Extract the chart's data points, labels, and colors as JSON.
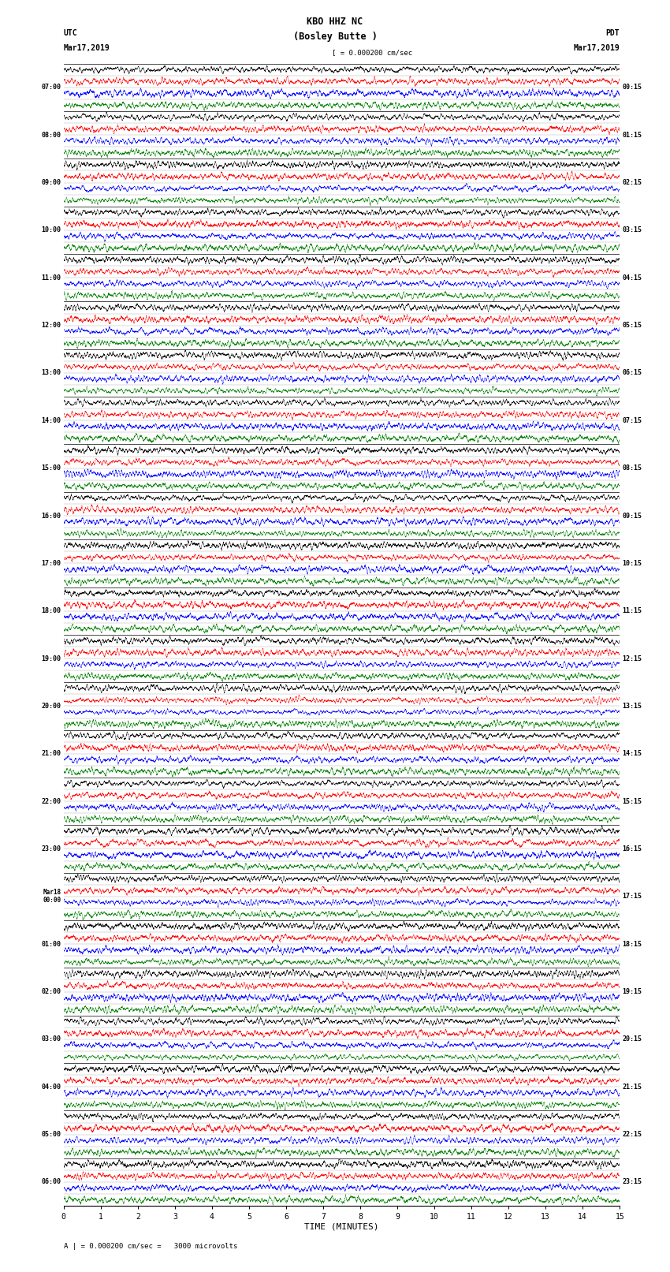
{
  "title_line1": "KBO HHZ NC",
  "title_line2": "(Bosley Butte )",
  "scale_label": "= 0.000200 cm/sec",
  "left_header_line1": "UTC",
  "left_header_line2": "Mar17,2019",
  "right_header_line1": "PDT",
  "right_header_line2": "Mar17,2019",
  "left_times": [
    "07:00",
    "08:00",
    "09:00",
    "10:00",
    "11:00",
    "12:00",
    "13:00",
    "14:00",
    "15:00",
    "16:00",
    "17:00",
    "18:00",
    "19:00",
    "20:00",
    "21:00",
    "22:00",
    "23:00",
    "Mar18\n00:00",
    "01:00",
    "02:00",
    "03:00",
    "04:00",
    "05:00",
    "06:00"
  ],
  "right_times": [
    "00:15",
    "01:15",
    "02:15",
    "03:15",
    "04:15",
    "05:15",
    "06:15",
    "07:15",
    "08:15",
    "09:15",
    "10:15",
    "11:15",
    "12:15",
    "13:15",
    "14:15",
    "15:15",
    "16:15",
    "17:15",
    "18:15",
    "19:15",
    "20:15",
    "21:15",
    "22:15",
    "23:15"
  ],
  "xlabel": "TIME (MINUTES)",
  "bottom_label": "= 0.000200 cm/sec =   3000 microvolts",
  "num_rows": 24,
  "colors": [
    "black",
    "red",
    "blue",
    "green"
  ],
  "background_color": "white",
  "fig_width": 8.5,
  "fig_height": 16.13,
  "dpi": 100,
  "xlim": [
    0,
    15
  ],
  "xticks": [
    0,
    1,
    2,
    3,
    4,
    5,
    6,
    7,
    8,
    9,
    10,
    11,
    12,
    13,
    14,
    15
  ]
}
